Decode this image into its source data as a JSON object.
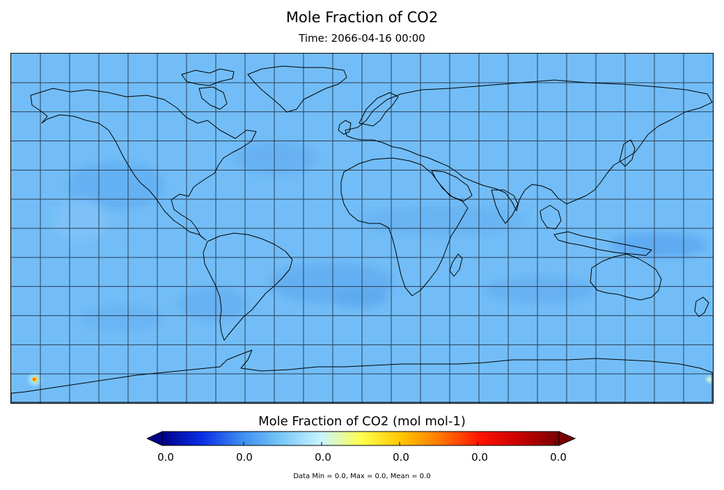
{
  "map": {
    "title": "Mole Fraction of CO2",
    "subtitle": "Time: 2066-04-16 00:00",
    "background_color": "#72bdf7",
    "coastline_color": "#000000",
    "grid_color": "#2b3f55",
    "projection": "equirectangular",
    "grid_lon_step_deg": 15,
    "grid_lat_step_deg": 15
  },
  "colorbar": {
    "title": "Mole Fraction of CO2 (mol mol-1)",
    "tick_labels": [
      "0.0",
      "0.0",
      "0.0",
      "0.0",
      "0.0",
      "0.0"
    ],
    "colors": [
      "#00008c",
      "#0a2ee6",
      "#3c8cf0",
      "#78c8f8",
      "#c8f4ff",
      "#ffff50",
      "#ffc800",
      "#ff7800",
      "#ff1400",
      "#c80000",
      "#780000"
    ],
    "extend": "both"
  },
  "stats": {
    "text": "Data Min = 0.0, Max = 0.0, Mean = 0.0"
  }
}
